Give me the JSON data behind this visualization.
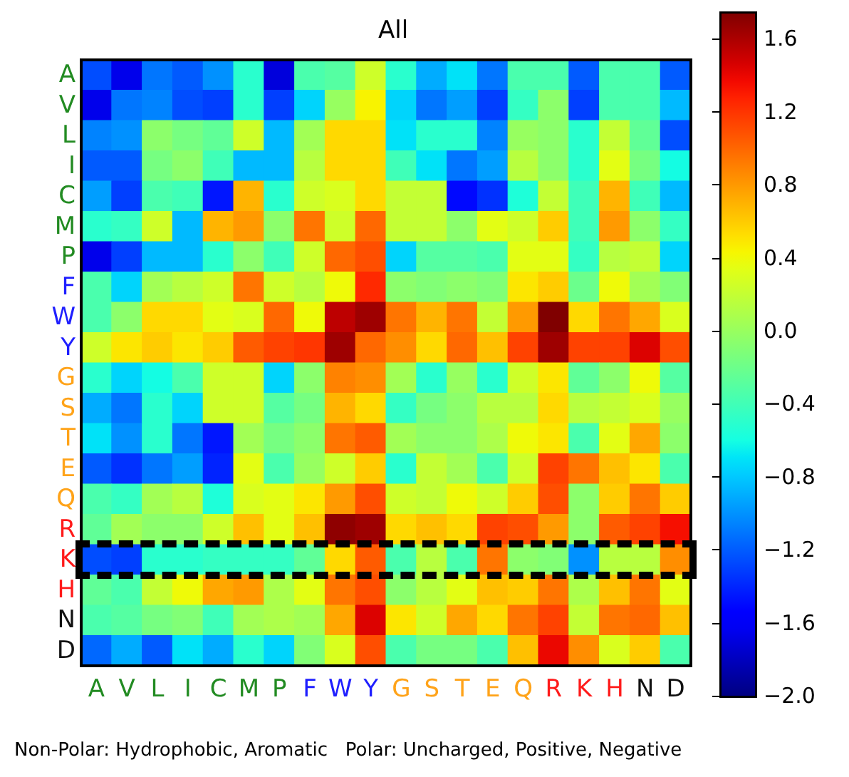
{
  "chart_data": {
    "type": "heatmap",
    "title": "All",
    "categories": [
      "A",
      "V",
      "L",
      "I",
      "C",
      "M",
      "P",
      "F",
      "W",
      "Y",
      "G",
      "S",
      "T",
      "E",
      "Q",
      "R",
      "K",
      "H",
      "N",
      "D"
    ],
    "y_categories": [
      "A",
      "V",
      "L",
      "I",
      "C",
      "M",
      "P",
      "F",
      "W",
      "Y",
      "G",
      "S",
      "T",
      "E",
      "Q",
      "R",
      "K",
      "H",
      "N",
      "D"
    ],
    "cells": [
      [
        -1.25,
        -1.65,
        -1.1,
        -1.2,
        -1.0,
        -0.5,
        -1.7,
        -0.35,
        -0.3,
        0.25,
        -0.5,
        -0.9,
        -0.7,
        -1.1,
        -0.35,
        -0.35,
        -1.2,
        -0.35,
        -0.35,
        -1.2
      ],
      [
        -1.65,
        -1.1,
        -1.05,
        -1.25,
        -1.3,
        -0.5,
        -1.3,
        -0.75,
        0.0,
        0.45,
        -0.75,
        -1.1,
        -0.95,
        -1.3,
        -0.45,
        -0.05,
        -1.3,
        -0.35,
        -0.35,
        -0.85
      ],
      [
        -1.05,
        -1.0,
        -0.05,
        -0.15,
        -0.25,
        0.25,
        -0.85,
        0.05,
        0.55,
        0.55,
        -0.7,
        -0.5,
        -0.5,
        -1.05,
        0.0,
        -0.05,
        -0.5,
        0.2,
        -0.25,
        -1.25
      ],
      [
        -1.2,
        -1.2,
        -0.15,
        -0.05,
        -0.4,
        -0.85,
        -0.85,
        0.15,
        0.55,
        0.55,
        -0.4,
        -0.7,
        -1.1,
        -0.95,
        0.15,
        -0.05,
        -0.5,
        0.35,
        -0.15,
        -0.6
      ],
      [
        -0.95,
        -1.3,
        -0.35,
        -0.4,
        -1.45,
        0.7,
        -0.5,
        0.25,
        0.3,
        0.55,
        0.2,
        0.2,
        -1.5,
        -1.35,
        -0.55,
        0.2,
        -0.4,
        0.7,
        -0.4,
        -0.85
      ],
      [
        -0.5,
        -0.45,
        0.25,
        -0.85,
        0.7,
        0.8,
        -0.05,
        0.95,
        0.25,
        1.0,
        0.2,
        0.2,
        -0.05,
        0.35,
        0.25,
        0.6,
        -0.4,
        0.8,
        -0.05,
        -0.45
      ],
      [
        -1.65,
        -1.3,
        -0.85,
        -0.85,
        -0.5,
        -0.05,
        -0.4,
        0.25,
        1.0,
        1.1,
        -0.75,
        -0.3,
        -0.3,
        -0.35,
        0.35,
        0.35,
        -0.45,
        0.15,
        0.2,
        -0.75
      ],
      [
        -0.35,
        -0.75,
        0.05,
        0.15,
        0.25,
        0.95,
        0.25,
        0.15,
        0.4,
        1.25,
        -0.05,
        -0.1,
        -0.05,
        -0.1,
        0.5,
        0.6,
        -0.2,
        0.4,
        0.05,
        -0.1
      ],
      [
        -0.35,
        -0.05,
        0.55,
        0.55,
        0.35,
        0.3,
        1.0,
        0.4,
        1.55,
        1.65,
        0.95,
        0.7,
        0.95,
        0.2,
        0.8,
        1.75,
        0.55,
        0.95,
        0.75,
        0.3
      ],
      [
        0.25,
        0.5,
        0.6,
        0.5,
        0.6,
        1.05,
        1.15,
        1.2,
        1.65,
        1.0,
        0.85,
        0.55,
        1.0,
        0.65,
        1.15,
        1.65,
        1.15,
        1.15,
        1.45,
        1.1
      ],
      [
        -0.5,
        -0.75,
        -0.6,
        -0.35,
        0.25,
        0.25,
        -0.75,
        -0.05,
        0.9,
        0.85,
        0.05,
        -0.5,
        0.0,
        -0.5,
        0.25,
        0.5,
        -0.25,
        -0.05,
        0.4,
        -0.3
      ],
      [
        -0.9,
        -1.1,
        -0.5,
        -0.75,
        0.25,
        0.25,
        -0.3,
        -0.15,
        0.7,
        0.55,
        -0.45,
        -0.15,
        -0.05,
        0.15,
        0.15,
        0.55,
        0.15,
        0.2,
        0.3,
        0.0
      ],
      [
        -0.7,
        -1.0,
        -0.5,
        -1.1,
        -1.45,
        0.05,
        -0.15,
        -0.05,
        0.95,
        1.05,
        0.05,
        -0.05,
        -0.05,
        0.1,
        0.4,
        0.5,
        -0.35,
        0.35,
        0.75,
        -0.05
      ],
      [
        -1.2,
        -1.35,
        -1.1,
        -0.95,
        -1.4,
        0.35,
        -0.35,
        0.0,
        0.25,
        0.6,
        -0.5,
        0.2,
        0.05,
        -0.35,
        0.25,
        1.15,
        0.95,
        0.65,
        0.5,
        -0.35
      ],
      [
        -0.35,
        -0.45,
        0.05,
        0.15,
        -0.55,
        0.3,
        0.35,
        0.5,
        0.8,
        1.1,
        0.25,
        0.2,
        0.4,
        0.25,
        0.6,
        1.1,
        -0.05,
        0.6,
        0.95,
        0.6
      ],
      [
        -0.25,
        0.05,
        -0.05,
        -0.05,
        0.25,
        0.65,
        0.35,
        0.65,
        1.7,
        1.65,
        0.55,
        0.65,
        0.55,
        1.15,
        1.1,
        0.8,
        -0.05,
        1.05,
        1.15,
        1.35
      ],
      [
        -1.25,
        -1.3,
        -0.5,
        -0.5,
        -0.45,
        -0.45,
        -0.45,
        -0.25,
        0.55,
        1.05,
        -0.35,
        0.15,
        -0.35,
        0.95,
        -0.05,
        -0.1,
        -1.0,
        0.15,
        0.15,
        0.85
      ],
      [
        -0.25,
        -0.35,
        0.2,
        0.4,
        0.75,
        0.8,
        0.1,
        0.35,
        0.95,
        1.1,
        -0.05,
        0.15,
        0.35,
        0.65,
        0.6,
        0.95,
        0.1,
        0.65,
        0.95,
        0.35
      ],
      [
        -0.35,
        -0.3,
        -0.15,
        -0.1,
        -0.4,
        0.05,
        0.1,
        0.05,
        0.75,
        1.45,
        0.5,
        0.25,
        0.75,
        0.55,
        0.95,
        1.15,
        0.2,
        0.95,
        1.0,
        0.65
      ],
      [
        -1.15,
        -0.9,
        -1.2,
        -0.7,
        -0.9,
        -0.5,
        -0.75,
        -0.1,
        0.3,
        1.1,
        -0.35,
        -0.15,
        -0.15,
        -0.35,
        0.65,
        1.4,
        0.85,
        0.3,
        0.6,
        -0.35
      ]
    ],
    "clim": [
      -2.0,
      1.75
    ],
    "cticks": [
      {
        "value": -2.0,
        "label": "−2.0"
      },
      {
        "value": -1.6,
        "label": "−1.6"
      },
      {
        "value": -1.2,
        "label": "−1.2"
      },
      {
        "value": -0.8,
        "label": "−0.8"
      },
      {
        "value": -0.4,
        "label": "−0.4"
      },
      {
        "value": 0,
        "label": "0.0"
      },
      0.4,
      0.8,
      1.2,
      1.6
    ],
    "annotations": [
      "Non-Polar: Hydrophobic, Aromatic",
      "Polar: Uncharged, Positive, Negative"
    ]
  }
}
